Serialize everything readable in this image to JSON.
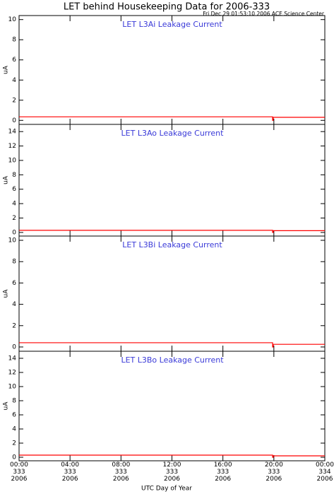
{
  "title": "LET behind Housekeeping Data for 2006-333",
  "subtitle": "Fri Dec 29 01:53:10 2006 ACE Science Center",
  "xaxis": {
    "label": "UTC Day of Year",
    "xlim": [
      0,
      24
    ],
    "xticks": [
      {
        "value": 0,
        "label": "00:00\n333\n2006"
      },
      {
        "value": 4,
        "label": "04:00\n333\n2006"
      },
      {
        "value": 8,
        "label": "08:00\n333\n2006"
      },
      {
        "value": 12,
        "label": "12:00\n333\n2006"
      },
      {
        "value": 16,
        "label": "16:00\n333\n2006"
      },
      {
        "value": 20,
        "label": "20:00\n333\n2006"
      },
      {
        "value": 24,
        "label": "00:00\n334\n2006"
      }
    ]
  },
  "chart_data": [
    {
      "type": "line",
      "title": "LET L3Ai Leakage Current",
      "ylabel": "uA",
      "ylim": [
        -0.4,
        10.4
      ],
      "yticks": [
        0,
        2,
        4,
        6,
        8,
        10
      ],
      "x": [
        0,
        19.9,
        19.9,
        19.95,
        19.95,
        24
      ],
      "series": [
        {
          "name": "L3Ai",
          "color": "#ff0000",
          "values": [
            0.35,
            0.35,
            0,
            0,
            0.3,
            0.3
          ]
        }
      ]
    },
    {
      "type": "line",
      "title": "LET L3Ao Leakage Current",
      "ylabel": "uA",
      "ylim": [
        -0.5,
        15
      ],
      "yticks": [
        0,
        2,
        4,
        6,
        8,
        10,
        12,
        14
      ],
      "x": [
        0,
        19.9,
        19.9,
        19.95,
        19.95,
        24
      ],
      "series": [
        {
          "name": "L3Ao",
          "color": "#ff0000",
          "values": [
            0.3,
            0.3,
            0,
            0,
            0.25,
            0.25
          ]
        }
      ]
    },
    {
      "type": "line",
      "title": "LET L3Bi Leakage Current",
      "ylabel": "uA",
      "ylim": [
        -0.4,
        10.4
      ],
      "yticks": [
        0,
        2,
        4,
        6,
        8,
        10
      ],
      "x": [
        0,
        19.9,
        19.9,
        19.95,
        19.95,
        24
      ],
      "series": [
        {
          "name": "L3Bi",
          "color": "#ff0000",
          "values": [
            0.4,
            0.4,
            0,
            0,
            0.25,
            0.25
          ]
        }
      ]
    },
    {
      "type": "line",
      "title": "LET L3Bo Leakage Current",
      "ylabel": "uA",
      "ylim": [
        -0.5,
        15
      ],
      "yticks": [
        0,
        2,
        4,
        6,
        8,
        10,
        12,
        14
      ],
      "x": [
        0,
        19.9,
        19.9,
        19.95,
        19.95,
        24
      ],
      "series": [
        {
          "name": "L3Bo",
          "color": "#ff0000",
          "values": [
            0.3,
            0.3,
            0,
            0,
            0.2,
            0.2
          ]
        }
      ]
    }
  ]
}
